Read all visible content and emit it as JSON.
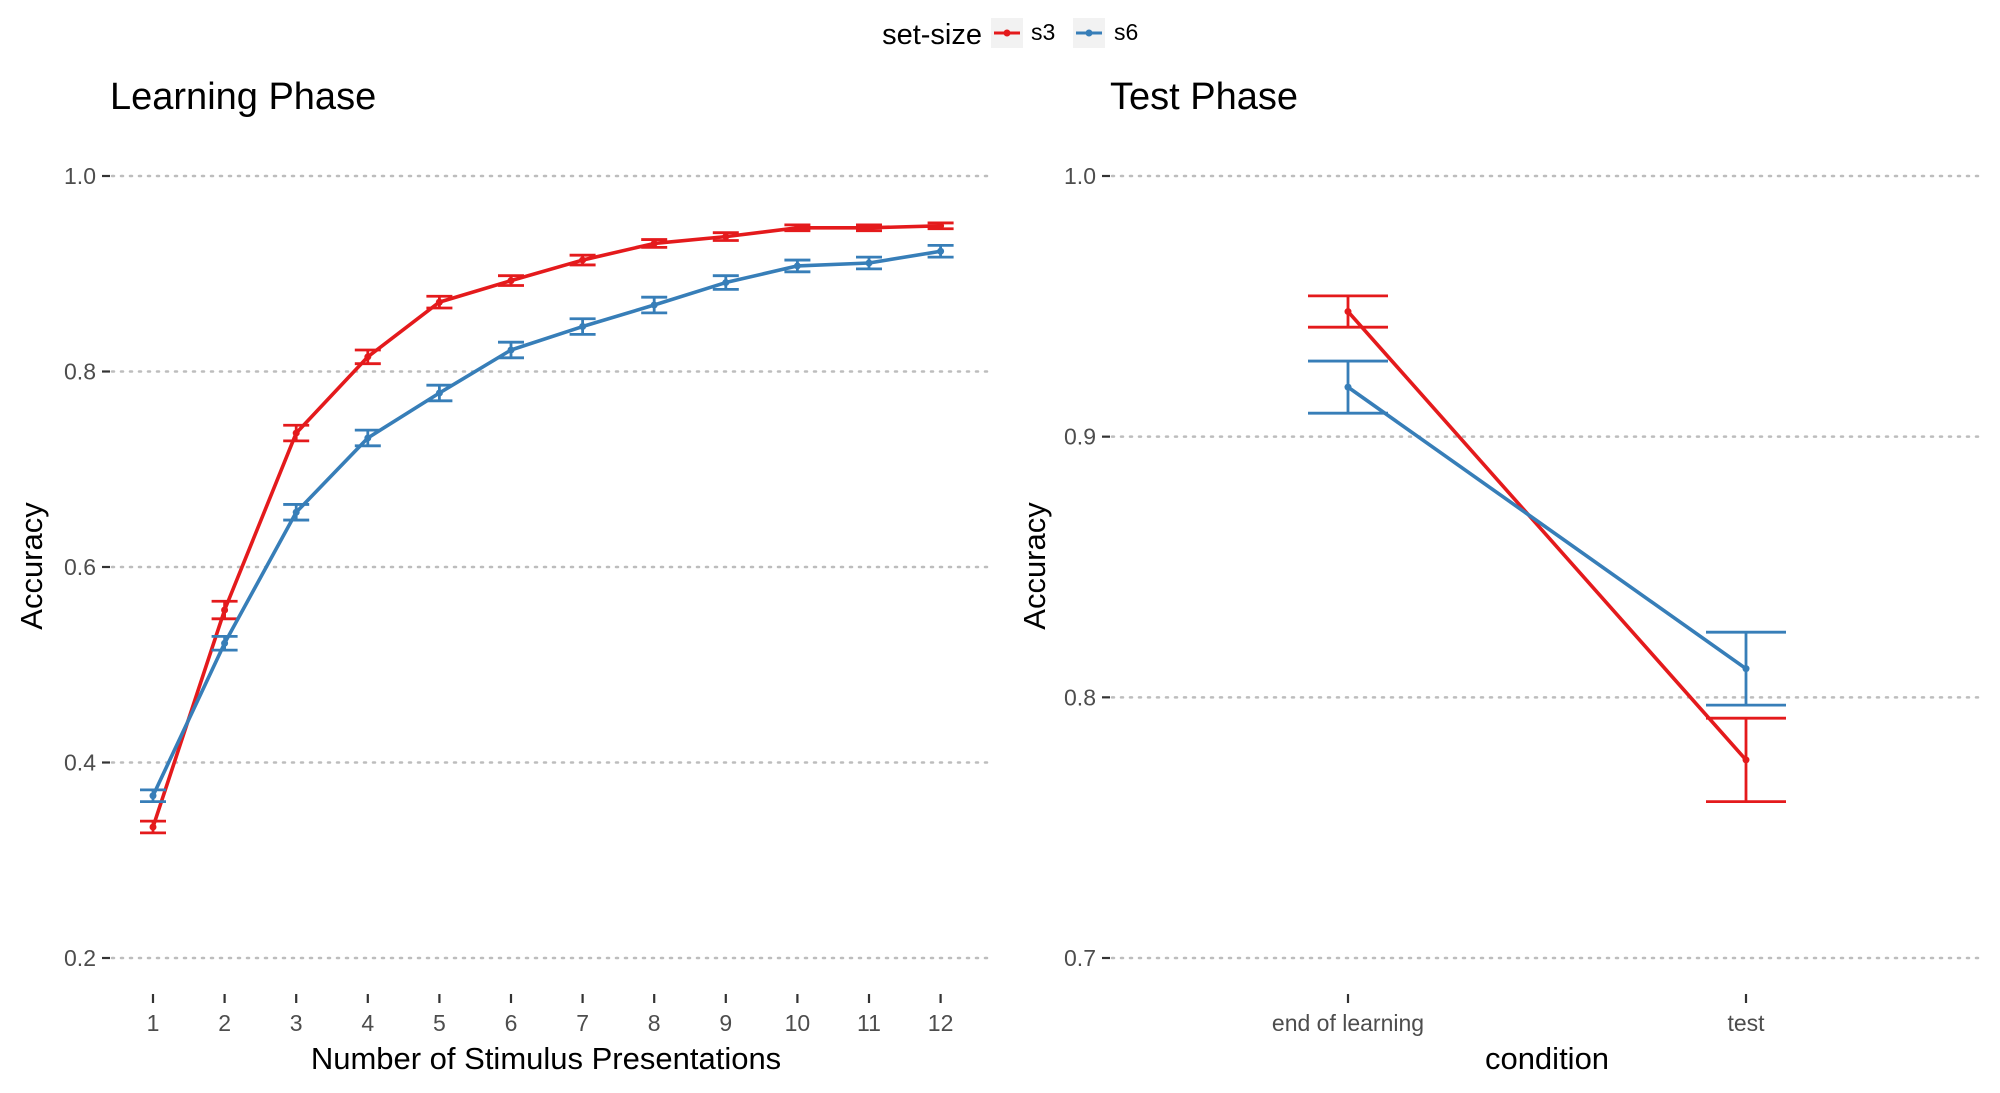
{
  "legend": {
    "title": "set-size",
    "entries": [
      {
        "label": "s3",
        "color": "#e41a1c"
      },
      {
        "label": "s6",
        "color": "#377eb8"
      }
    ]
  },
  "chart_data": [
    {
      "type": "line",
      "title": "Learning Phase",
      "xlabel": "Number of Stimulus Presentations",
      "ylabel": "Accuracy",
      "categories": [
        "1",
        "2",
        "3",
        "4",
        "5",
        "6",
        "7",
        "8",
        "9",
        "10",
        "11",
        "12"
      ],
      "ylim": [
        0.2,
        1.0
      ],
      "yticks": [
        "0.2",
        "0.4",
        "0.6",
        "0.8",
        "1.0"
      ],
      "grid": "horizontal dotted",
      "series": [
        {
          "name": "s3",
          "color": "#e41a1c",
          "values": [
            0.334,
            0.556,
            0.737,
            0.815,
            0.871,
            0.893,
            0.914,
            0.931,
            0.938,
            0.947,
            0.947,
            0.949
          ],
          "error": [
            0.006,
            0.009,
            0.008,
            0.007,
            0.006,
            0.005,
            0.005,
            0.004,
            0.004,
            0.003,
            0.003,
            0.003
          ]
        },
        {
          "name": "s6",
          "color": "#377eb8",
          "values": [
            0.366,
            0.522,
            0.656,
            0.732,
            0.778,
            0.822,
            0.846,
            0.868,
            0.891,
            0.908,
            0.911,
            0.923
          ],
          "error": [
            0.006,
            0.007,
            0.008,
            0.008,
            0.008,
            0.008,
            0.008,
            0.008,
            0.007,
            0.006,
            0.006,
            0.006
          ]
        }
      ]
    },
    {
      "type": "line",
      "title": "Test Phase",
      "xlabel": "condition",
      "ylabel": "Accuracy",
      "categories": [
        "end of learning",
        "test"
      ],
      "ylim": [
        0.7,
        1.0
      ],
      "yticks": [
        "0.7",
        "0.8",
        "0.9",
        "1.0"
      ],
      "grid": "horizontal dotted",
      "series": [
        {
          "name": "s3",
          "color": "#e41a1c",
          "values": [
            0.948,
            0.776
          ],
          "error": [
            0.006,
            0.016
          ]
        },
        {
          "name": "s6",
          "color": "#377eb8",
          "values": [
            0.919,
            0.811
          ],
          "error": [
            0.01,
            0.014
          ]
        }
      ]
    }
  ]
}
